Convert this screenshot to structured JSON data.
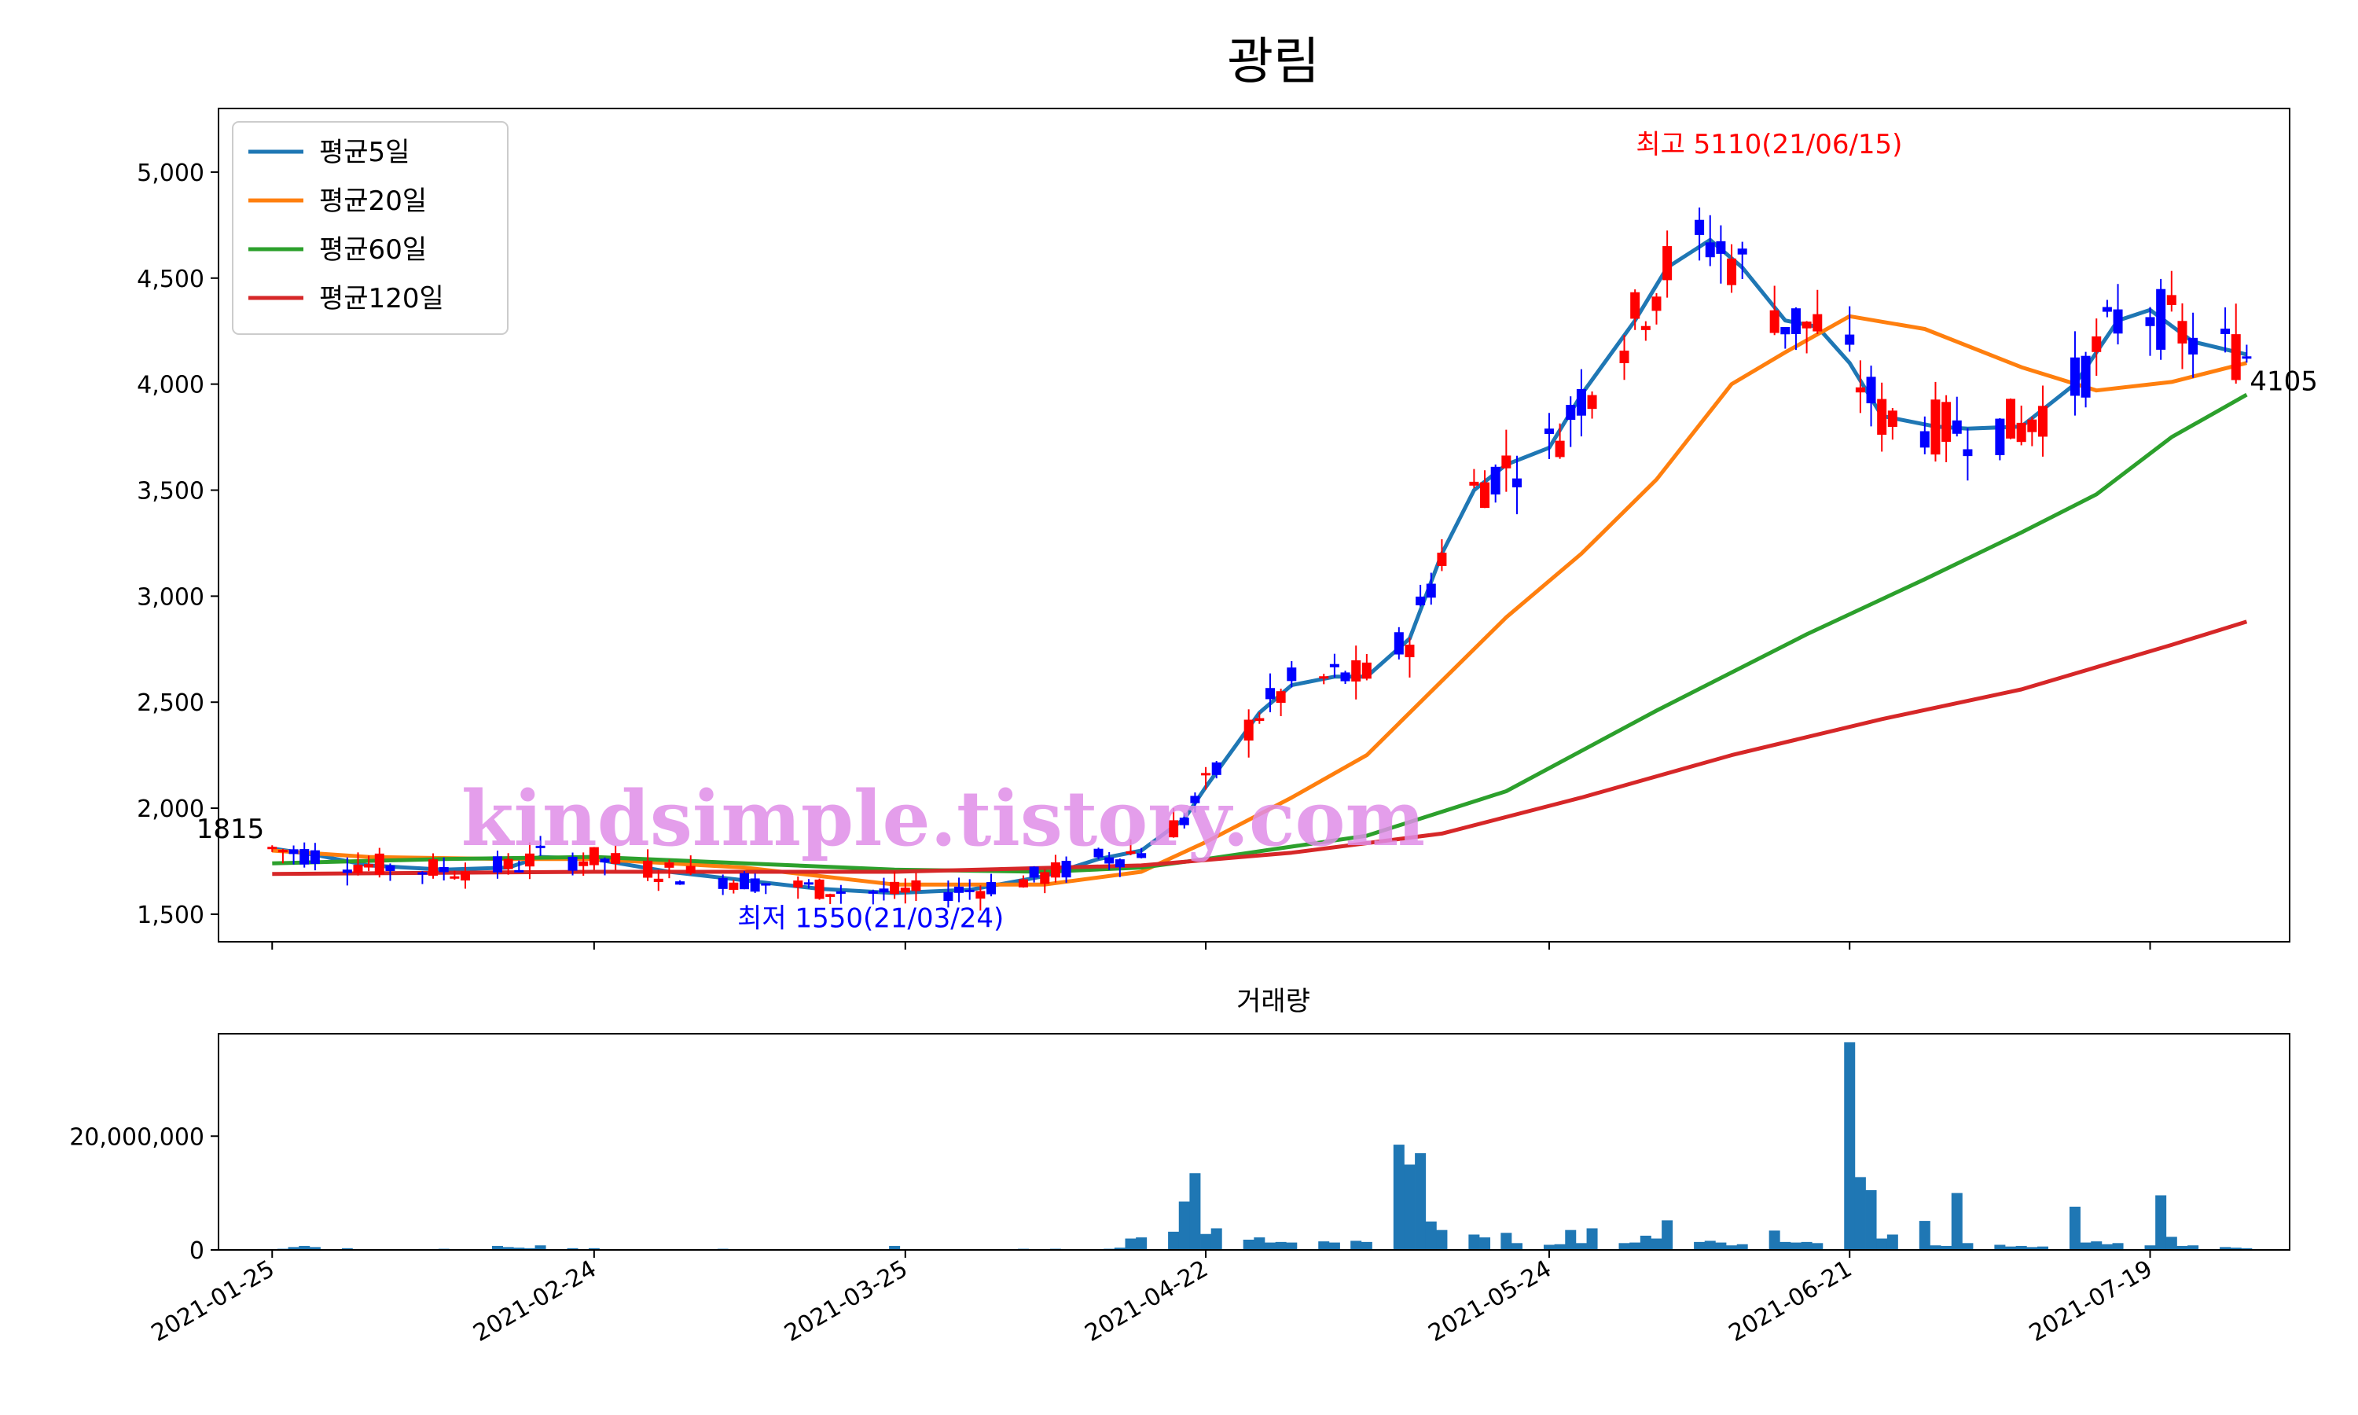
{
  "chart_data": [
    {
      "type": "candlestick",
      "title": "광림",
      "series": [
        {
          "name": "평균5일",
          "color": "#1f77b4",
          "points": [
            [
              "2021-01-25",
              1810
            ],
            [
              "2021-01-29",
              1780
            ],
            [
              "2021-02-03",
              1730
            ],
            [
              "2021-02-10",
              1710
            ],
            [
              "2021-02-16",
              1720
            ],
            [
              "2021-02-19",
              1770
            ],
            [
              "2021-02-24",
              1760
            ],
            [
              "2021-03-03",
              1700
            ],
            [
              "2021-03-10",
              1660
            ],
            [
              "2021-03-17",
              1620
            ],
            [
              "2021-03-24",
              1600
            ],
            [
              "2021-03-31",
              1615
            ],
            [
              "2021-04-07",
              1680
            ],
            [
              "2021-04-12",
              1760
            ],
            [
              "2021-04-16",
              1800
            ],
            [
              "2021-04-20",
              1950
            ],
            [
              "2021-04-22",
              2100
            ],
            [
              "2021-04-27",
              2450
            ],
            [
              "2021-04-30",
              2580
            ],
            [
              "2021-05-04",
              2620
            ],
            [
              "2021-05-07",
              2620
            ],
            [
              "2021-05-11",
              2800
            ],
            [
              "2021-05-14",
              3200
            ],
            [
              "2021-05-17",
              3500
            ],
            [
              "2021-05-20",
              3620
            ],
            [
              "2021-05-24",
              3700
            ],
            [
              "2021-05-27",
              3950
            ],
            [
              "2021-06-01",
              4300
            ],
            [
              "2021-06-04",
              4550
            ],
            [
              "2021-06-08",
              4680
            ],
            [
              "2021-06-11",
              4550
            ],
            [
              "2021-06-15",
              4300
            ],
            [
              "2021-06-18",
              4270
            ],
            [
              "2021-06-21",
              4100
            ],
            [
              "2021-06-24",
              3850
            ],
            [
              "2021-06-29",
              3800
            ],
            [
              "2021-07-02",
              3790
            ],
            [
              "2021-07-07",
              3800
            ],
            [
              "2021-07-12",
              4000
            ],
            [
              "2021-07-16",
              4300
            ],
            [
              "2021-07-19",
              4350
            ],
            [
              "2021-07-23",
              4200
            ],
            [
              "2021-07-28",
              4140
            ]
          ]
        },
        {
          "name": "평균20일",
          "color": "#ff7f0e",
          "points": [
            [
              "2021-01-25",
              1800
            ],
            [
              "2021-02-03",
              1770
            ],
            [
              "2021-02-16",
              1760
            ],
            [
              "2021-02-24",
              1760
            ],
            [
              "2021-03-10",
              1720
            ],
            [
              "2021-03-24",
              1640
            ],
            [
              "2021-04-07",
              1640
            ],
            [
              "2021-04-16",
              1700
            ],
            [
              "2021-04-22",
              1840
            ],
            [
              "2021-04-30",
              2050
            ],
            [
              "2021-05-07",
              2250
            ],
            [
              "2021-05-14",
              2600
            ],
            [
              "2021-05-20",
              2900
            ],
            [
              "2021-05-27",
              3200
            ],
            [
              "2021-06-03",
              3550
            ],
            [
              "2021-06-10",
              4000
            ],
            [
              "2021-06-15",
              4150
            ],
            [
              "2021-06-21",
              4320
            ],
            [
              "2021-06-28",
              4260
            ],
            [
              "2021-07-07",
              4080
            ],
            [
              "2021-07-14",
              3970
            ],
            [
              "2021-07-21",
              4010
            ],
            [
              "2021-07-28",
              4100
            ]
          ]
        },
        {
          "name": "평균60일",
          "color": "#2ca02c",
          "points": [
            [
              "2021-01-25",
              1740
            ],
            [
              "2021-02-10",
              1760
            ],
            [
              "2021-02-24",
              1770
            ],
            [
              "2021-03-10",
              1740
            ],
            [
              "2021-03-24",
              1710
            ],
            [
              "2021-04-07",
              1700
            ],
            [
              "2021-04-16",
              1720
            ],
            [
              "2021-04-22",
              1760
            ],
            [
              "2021-05-07",
              1870
            ],
            [
              "2021-05-20",
              2080
            ],
            [
              "2021-06-03",
              2460
            ],
            [
              "2021-06-17",
              2820
            ],
            [
              "2021-06-28",
              3080
            ],
            [
              "2021-07-07",
              3300
            ],
            [
              "2021-07-14",
              3480
            ],
            [
              "2021-07-21",
              3750
            ],
            [
              "2021-07-28",
              3950
            ]
          ]
        },
        {
          "name": "평균120일",
          "color": "#d62728",
          "points": [
            [
              "2021-01-25",
              1690
            ],
            [
              "2021-02-24",
              1700
            ],
            [
              "2021-03-24",
              1700
            ],
            [
              "2021-04-16",
              1730
            ],
            [
              "2021-04-30",
              1790
            ],
            [
              "2021-05-14",
              1880
            ],
            [
              "2021-05-27",
              2050
            ],
            [
              "2021-06-10",
              2250
            ],
            [
              "2021-06-24",
              2420
            ],
            [
              "2021-07-07",
              2560
            ],
            [
              "2021-07-21",
              2770
            ],
            [
              "2021-07-28",
              2880
            ]
          ]
        }
      ],
      "annotations": {
        "start_label": "1815",
        "end_label": "4105",
        "high_label": "최고 5110(21/06/15)",
        "low_label": "최저 1550(21/03/24)"
      },
      "high": {
        "date": "2021-06-15",
        "value": 5110
      },
      "low": {
        "date": "2021-03-24",
        "value": 1550
      },
      "ylim": [
        1370,
        5300
      ],
      "yticks": [
        1500,
        2000,
        2500,
        3000,
        3500,
        4000,
        4500,
        5000
      ],
      "ytick_labels": [
        "1,500",
        "2,000",
        "2,500",
        "3,000",
        "3,500",
        "4,000",
        "4,500",
        "5,000"
      ],
      "xlim": [
        "2021-01-20",
        "2021-08-01"
      ],
      "xticks": [
        "2021-01-25",
        "2021-02-24",
        "2021-03-25",
        "2021-04-22",
        "2021-05-24",
        "2021-06-21",
        "2021-07-19"
      ],
      "legend_location": "upper-left",
      "up_color": "#ff0000",
      "down_color": "#0000ff"
    },
    {
      "type": "bar",
      "title": "거래량",
      "color": "#1f77b4",
      "ylim": [
        0,
        38000000
      ],
      "yticks": [
        0,
        20000000
      ],
      "ytick_labels": [
        "0",
        "20,000,000"
      ],
      "bars": [
        [
          "2021-01-26",
          200000
        ],
        [
          "2021-01-27",
          500000
        ],
        [
          "2021-01-28",
          700000
        ],
        [
          "2021-01-29",
          500000
        ],
        [
          "2021-02-01",
          300000
        ],
        [
          "2021-02-10",
          200000
        ],
        [
          "2021-02-15",
          700000
        ],
        [
          "2021-02-16",
          500000
        ],
        [
          "2021-02-17",
          400000
        ],
        [
          "2021-02-18",
          300000
        ],
        [
          "2021-02-19",
          800000
        ],
        [
          "2021-02-22",
          300000
        ],
        [
          "2021-02-24",
          300000
        ],
        [
          "2021-03-08",
          200000
        ],
        [
          "2021-03-24",
          700000
        ],
        [
          "2021-04-05",
          200000
        ],
        [
          "2021-04-08",
          200000
        ],
        [
          "2021-04-13",
          200000
        ],
        [
          "2021-04-14",
          400000
        ],
        [
          "2021-04-15",
          2000000
        ],
        [
          "2021-04-16",
          2200000
        ],
        [
          "2021-04-19",
          3200000
        ],
        [
          "2021-04-20",
          8500000
        ],
        [
          "2021-04-21",
          13500000
        ],
        [
          "2021-04-22",
          2800000
        ],
        [
          "2021-04-23",
          3800000
        ],
        [
          "2021-04-26",
          1800000
        ],
        [
          "2021-04-27",
          2200000
        ],
        [
          "2021-04-28",
          1300000
        ],
        [
          "2021-04-29",
          1400000
        ],
        [
          "2021-04-30",
          1300000
        ],
        [
          "2021-05-03",
          1500000
        ],
        [
          "2021-05-04",
          1300000
        ],
        [
          "2021-05-06",
          1600000
        ],
        [
          "2021-05-07",
          1400000
        ],
        [
          "2021-05-10",
          18500000
        ],
        [
          "2021-05-11",
          15000000
        ],
        [
          "2021-05-12",
          17000000
        ],
        [
          "2021-05-13",
          5000000
        ],
        [
          "2021-05-14",
          3500000
        ],
        [
          "2021-05-17",
          2700000
        ],
        [
          "2021-05-18",
          2200000
        ],
        [
          "2021-05-20",
          3000000
        ],
        [
          "2021-05-21",
          1200000
        ],
        [
          "2021-05-24",
          900000
        ],
        [
          "2021-05-25",
          1000000
        ],
        [
          "2021-05-26",
          3500000
        ],
        [
          "2021-05-27",
          1200000
        ],
        [
          "2021-05-28",
          3800000
        ],
        [
          "2021-05-31",
          1200000
        ],
        [
          "2021-06-01",
          1300000
        ],
        [
          "2021-06-02",
          2500000
        ],
        [
          "2021-06-03",
          2000000
        ],
        [
          "2021-06-04",
          5200000
        ],
        [
          "2021-06-07",
          1400000
        ],
        [
          "2021-06-08",
          1600000
        ],
        [
          "2021-06-09",
          1300000
        ],
        [
          "2021-06-10",
          800000
        ],
        [
          "2021-06-11",
          1000000
        ],
        [
          "2021-06-14",
          3400000
        ],
        [
          "2021-06-15",
          1400000
        ],
        [
          "2021-06-16",
          1300000
        ],
        [
          "2021-06-17",
          1400000
        ],
        [
          "2021-06-18",
          1200000
        ],
        [
          "2021-06-21",
          36500000
        ],
        [
          "2021-06-22",
          12800000
        ],
        [
          "2021-06-23",
          10500000
        ],
        [
          "2021-06-24",
          2000000
        ],
        [
          "2021-06-25",
          2700000
        ],
        [
          "2021-06-28",
          5100000
        ],
        [
          "2021-06-29",
          800000
        ],
        [
          "2021-06-30",
          700000
        ],
        [
          "2021-07-01",
          10000000
        ],
        [
          "2021-07-02",
          1200000
        ],
        [
          "2021-07-05",
          900000
        ],
        [
          "2021-07-06",
          600000
        ],
        [
          "2021-07-07",
          700000
        ],
        [
          "2021-07-08",
          500000
        ],
        [
          "2021-07-09",
          600000
        ],
        [
          "2021-07-12",
          7600000
        ],
        [
          "2021-07-13",
          1300000
        ],
        [
          "2021-07-14",
          1500000
        ],
        [
          "2021-07-15",
          1000000
        ],
        [
          "2021-07-16",
          1200000
        ],
        [
          "2021-07-19",
          800000
        ],
        [
          "2021-07-20",
          9600000
        ],
        [
          "2021-07-21",
          2300000
        ],
        [
          "2021-07-22",
          700000
        ],
        [
          "2021-07-23",
          800000
        ],
        [
          "2021-07-26",
          500000
        ],
        [
          "2021-07-27",
          400000
        ],
        [
          "2021-07-28",
          300000
        ]
      ]
    }
  ],
  "watermark": "kindsimple.tistory.com"
}
